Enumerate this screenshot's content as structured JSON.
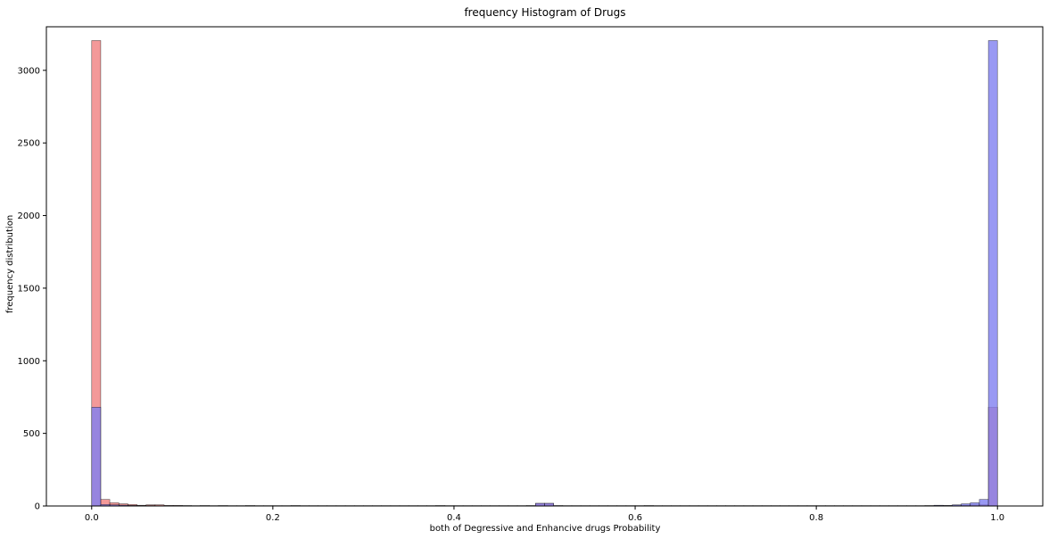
{
  "chart_data": {
    "type": "bar",
    "title": "frequency Histogram of Drugs",
    "xlabel": "both of Degressive and Enhancive drugs Probability",
    "ylabel": "frequency distribution",
    "xlim": [
      -0.05,
      1.05
    ],
    "ylim": [
      0,
      3300
    ],
    "xticks": [
      0.0,
      0.2,
      0.4,
      0.6,
      0.8,
      1.0
    ],
    "xtick_labels": [
      "0.0",
      "0.2",
      "0.4",
      "0.6",
      "0.8",
      "1.0"
    ],
    "yticks": [
      0,
      500,
      1000,
      1500,
      2000,
      2500,
      3000
    ],
    "ytick_labels": [
      "0",
      "500",
      "1000",
      "1500",
      "2000",
      "2500",
      "3000"
    ],
    "bins": 100,
    "bin_range": [
      0,
      1
    ],
    "grid": false,
    "series": [
      {
        "color": "#f08080",
        "edge": "#000000",
        "values": [
          3205,
          45,
          22,
          15,
          10,
          5,
          8,
          8,
          4,
          4,
          3,
          2,
          3,
          2,
          3,
          2,
          2,
          3,
          2,
          2,
          2,
          2,
          3,
          2,
          2,
          2,
          2,
          2,
          2,
          2,
          2,
          2,
          2,
          2,
          2,
          2,
          2,
          2,
          3,
          2,
          2,
          2,
          2,
          2,
          2,
          2,
          2,
          2,
          3,
          18,
          18,
          2,
          2,
          2,
          2,
          2,
          2,
          2,
          2,
          2,
          2,
          2,
          2,
          2,
          2,
          2,
          2,
          2,
          2,
          2,
          2,
          2,
          2,
          2,
          2,
          2,
          2,
          2,
          2,
          2,
          2,
          2,
          2,
          2,
          2,
          2,
          2,
          2,
          2,
          2,
          2,
          2,
          2,
          3,
          3,
          4,
          6,
          8,
          10,
          680
        ]
      },
      {
        "color": "#8080f0",
        "edge": "#000000",
        "values": [
          680,
          10,
          8,
          6,
          4,
          3,
          3,
          2,
          2,
          2,
          2,
          2,
          2,
          2,
          2,
          2,
          2,
          2,
          2,
          2,
          2,
          2,
          2,
          2,
          2,
          2,
          2,
          2,
          2,
          2,
          2,
          2,
          2,
          2,
          2,
          2,
          2,
          2,
          2,
          2,
          2,
          2,
          2,
          2,
          2,
          2,
          2,
          2,
          2,
          18,
          18,
          3,
          2,
          2,
          2,
          2,
          2,
          2,
          2,
          2,
          2,
          3,
          2,
          2,
          2,
          2,
          2,
          2,
          2,
          2,
          2,
          2,
          2,
          2,
          2,
          2,
          2,
          2,
          2,
          2,
          2,
          2,
          2,
          2,
          2,
          2,
          2,
          2,
          2,
          2,
          2,
          2,
          3,
          5,
          4,
          8,
          15,
          22,
          45,
          3205
        ]
      }
    ]
  }
}
